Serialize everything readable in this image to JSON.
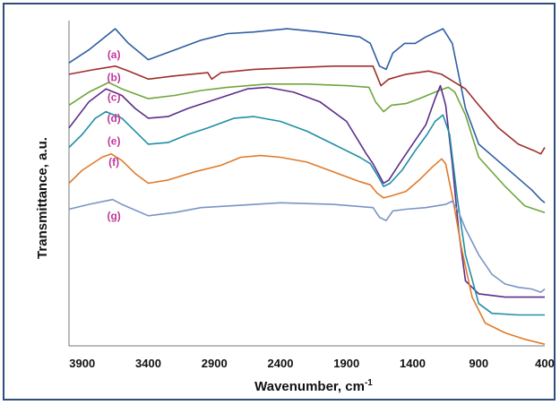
{
  "chart_data": {
    "type": "line",
    "xlabel": "Wavenumber, cm",
    "xlabel_sup": "-1",
    "ylabel": "Transmittance, a.u.",
    "xlim": [
      4000,
      400
    ],
    "x_reversed": true,
    "xticks": [
      3900,
      3400,
      2900,
      2400,
      1900,
      1400,
      900,
      400
    ],
    "ylim": [
      0,
      100
    ],
    "ytick_labels_shown": false,
    "grid": false,
    "label_color": "#c0399b",
    "series": [
      {
        "name": "(a)",
        "color": "#2e5fa3",
        "label_x": 3660,
        "label_y": 89.5,
        "points": [
          [
            4000,
            87
          ],
          [
            3850,
            91
          ],
          [
            3650,
            97.5
          ],
          [
            3550,
            93
          ],
          [
            3400,
            88
          ],
          [
            3200,
            91
          ],
          [
            3000,
            94
          ],
          [
            2800,
            96
          ],
          [
            2600,
            96.5
          ],
          [
            2350,
            97.5
          ],
          [
            2100,
            96.5
          ],
          [
            1800,
            95
          ],
          [
            1720,
            93
          ],
          [
            1650,
            86
          ],
          [
            1600,
            85
          ],
          [
            1550,
            90
          ],
          [
            1460,
            93
          ],
          [
            1380,
            93
          ],
          [
            1300,
            95
          ],
          [
            1170,
            97.5
          ],
          [
            1100,
            93
          ],
          [
            1000,
            73
          ],
          [
            900,
            62
          ],
          [
            700,
            55
          ],
          [
            500,
            48
          ],
          [
            430,
            45
          ],
          [
            400,
            44
          ]
        ]
      },
      {
        "name": "(b)",
        "color": "#a02f2c",
        "label_x": 3660,
        "label_y": 82.5,
        "points": [
          [
            4000,
            83.5
          ],
          [
            3800,
            85
          ],
          [
            3650,
            86
          ],
          [
            3550,
            84.5
          ],
          [
            3400,
            82
          ],
          [
            3200,
            83
          ],
          [
            2950,
            84
          ],
          [
            2920,
            82
          ],
          [
            2850,
            84
          ],
          [
            2600,
            85
          ],
          [
            2300,
            85.5
          ],
          [
            2000,
            86
          ],
          [
            1700,
            86
          ],
          [
            1640,
            80
          ],
          [
            1580,
            82
          ],
          [
            1450,
            83.5
          ],
          [
            1280,
            84.5
          ],
          [
            1180,
            83.5
          ],
          [
            1000,
            79
          ],
          [
            900,
            74
          ],
          [
            750,
            67
          ],
          [
            600,
            62
          ],
          [
            480,
            60
          ],
          [
            430,
            59
          ],
          [
            400,
            61
          ]
        ]
      },
      {
        "name": "(c)",
        "color": "#6fa63c",
        "label_x": 3660,
        "label_y": 76.5,
        "points": [
          [
            4000,
            74
          ],
          [
            3850,
            78
          ],
          [
            3700,
            81
          ],
          [
            3600,
            79
          ],
          [
            3400,
            76
          ],
          [
            3200,
            77
          ],
          [
            3000,
            78.5
          ],
          [
            2800,
            79.5
          ],
          [
            2500,
            80.5
          ],
          [
            2200,
            80.5
          ],
          [
            1900,
            80
          ],
          [
            1730,
            79.5
          ],
          [
            1680,
            75
          ],
          [
            1620,
            72
          ],
          [
            1560,
            74
          ],
          [
            1450,
            74.5
          ],
          [
            1350,
            76
          ],
          [
            1200,
            78.5
          ],
          [
            1130,
            79.5
          ],
          [
            1080,
            78
          ],
          [
            1000,
            71
          ],
          [
            900,
            58
          ],
          [
            700,
            49
          ],
          [
            550,
            43
          ],
          [
            400,
            41
          ]
        ]
      },
      {
        "name": "(d)",
        "color": "#5c2d8a",
        "label_x": 3660,
        "label_y": 70,
        "points": [
          [
            4000,
            67
          ],
          [
            3850,
            75
          ],
          [
            3720,
            79
          ],
          [
            3600,
            77
          ],
          [
            3500,
            73
          ],
          [
            3400,
            70
          ],
          [
            3250,
            70.5
          ],
          [
            3100,
            73
          ],
          [
            2950,
            75
          ],
          [
            2800,
            77
          ],
          [
            2650,
            79
          ],
          [
            2500,
            79.5
          ],
          [
            2300,
            78
          ],
          [
            2100,
            75
          ],
          [
            1900,
            69
          ],
          [
            1750,
            59
          ],
          [
            1700,
            56
          ],
          [
            1660,
            53
          ],
          [
            1620,
            50
          ],
          [
            1580,
            51
          ],
          [
            1500,
            56
          ],
          [
            1400,
            62
          ],
          [
            1300,
            68
          ],
          [
            1230,
            76
          ],
          [
            1190,
            80
          ],
          [
            1150,
            74
          ],
          [
            1100,
            56
          ],
          [
            1050,
            35
          ],
          [
            1000,
            20
          ],
          [
            900,
            16
          ],
          [
            700,
            15
          ],
          [
            500,
            15
          ],
          [
            400,
            15
          ]
        ]
      },
      {
        "name": "(e)",
        "color": "#1f8fa6",
        "label_x": 3660,
        "label_y": 63,
        "points": [
          [
            4000,
            61
          ],
          [
            3900,
            65
          ],
          [
            3800,
            70
          ],
          [
            3720,
            72
          ],
          [
            3600,
            70
          ],
          [
            3500,
            66
          ],
          [
            3400,
            62
          ],
          [
            3250,
            62.5
          ],
          [
            3100,
            65
          ],
          [
            2950,
            67
          ],
          [
            2750,
            70
          ],
          [
            2600,
            70.5
          ],
          [
            2400,
            69
          ],
          [
            2200,
            66
          ],
          [
            2000,
            62
          ],
          [
            1800,
            58
          ],
          [
            1720,
            56
          ],
          [
            1660,
            52
          ],
          [
            1620,
            49
          ],
          [
            1570,
            50
          ],
          [
            1480,
            54
          ],
          [
            1380,
            60
          ],
          [
            1290,
            65
          ],
          [
            1230,
            69
          ],
          [
            1170,
            71
          ],
          [
            1120,
            65
          ],
          [
            1060,
            45
          ],
          [
            1000,
            28
          ],
          [
            900,
            13
          ],
          [
            800,
            10
          ],
          [
            600,
            9.5
          ],
          [
            400,
            9.5
          ]
        ]
      },
      {
        "name": "(f)",
        "color": "#e07b2a",
        "label_x": 3660,
        "label_y": 56.5,
        "points": [
          [
            4000,
            50
          ],
          [
            3900,
            54
          ],
          [
            3750,
            58
          ],
          [
            3680,
            59
          ],
          [
            3600,
            57
          ],
          [
            3500,
            53
          ],
          [
            3400,
            50
          ],
          [
            3250,
            51
          ],
          [
            3050,
            53.5
          ],
          [
            2850,
            55.5
          ],
          [
            2700,
            58
          ],
          [
            2550,
            58.5
          ],
          [
            2400,
            58
          ],
          [
            2200,
            56.5
          ],
          [
            2000,
            53.5
          ],
          [
            1800,
            50.5
          ],
          [
            1720,
            49.5
          ],
          [
            1670,
            47
          ],
          [
            1620,
            45.5
          ],
          [
            1570,
            46
          ],
          [
            1450,
            47.5
          ],
          [
            1350,
            51
          ],
          [
            1250,
            55
          ],
          [
            1180,
            57.5
          ],
          [
            1150,
            56
          ],
          [
            1090,
            44
          ],
          [
            1030,
            30
          ],
          [
            950,
            15
          ],
          [
            850,
            7
          ],
          [
            700,
            4
          ],
          [
            550,
            2
          ],
          [
            400,
            0.5
          ]
        ]
      },
      {
        "name": "(g)",
        "color": "#7a94c6",
        "label_x": 3660,
        "label_y": 40,
        "points": [
          [
            4000,
            42
          ],
          [
            3850,
            43.5
          ],
          [
            3670,
            45
          ],
          [
            3600,
            43.5
          ],
          [
            3400,
            40
          ],
          [
            3200,
            41
          ],
          [
            3000,
            42.5
          ],
          [
            2800,
            43
          ],
          [
            2400,
            44
          ],
          [
            2000,
            43.5
          ],
          [
            1700,
            42.5
          ],
          [
            1650,
            39.5
          ],
          [
            1600,
            38.5
          ],
          [
            1550,
            41.5
          ],
          [
            1450,
            42
          ],
          [
            1300,
            42.5
          ],
          [
            1150,
            43.5
          ],
          [
            1100,
            44.5
          ],
          [
            1050,
            41
          ],
          [
            1000,
            36
          ],
          [
            900,
            28
          ],
          [
            800,
            22
          ],
          [
            700,
            19
          ],
          [
            600,
            18
          ],
          [
            500,
            17.5
          ],
          [
            430,
            16.5
          ],
          [
            400,
            17.5
          ]
        ]
      }
    ]
  }
}
